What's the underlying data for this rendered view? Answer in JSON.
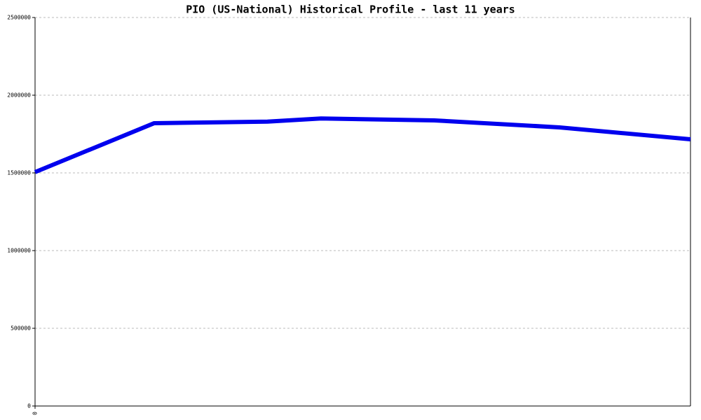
{
  "chart_data": {
    "type": "line",
    "title": "PIO (US-National) Historical Profile - last 11 years",
    "x": [
      0,
      2,
      3.9,
      4.8,
      6.7,
      8.8,
      11
    ],
    "series": [
      {
        "name": "PIO",
        "color": "#0000ee",
        "values": [
          1505000,
          1820000,
          1830000,
          1850000,
          1838000,
          1793000,
          1716000
        ]
      }
    ],
    "xlim": [
      0,
      11
    ],
    "xticks": [
      0
    ],
    "ylim": [
      0,
      2500000
    ],
    "yticks": [
      0,
      500000,
      1000000,
      1500000,
      2000000,
      2500000
    ],
    "grid": true
  }
}
